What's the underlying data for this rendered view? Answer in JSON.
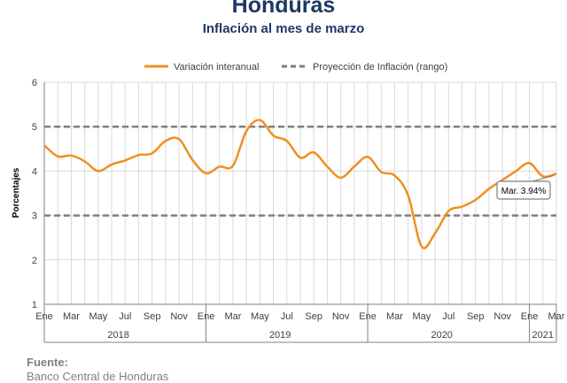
{
  "title": "Honduras",
  "subtitle": "Inflación al mes de marzo",
  "source_label": "Fuente:",
  "source_text": "Banco Central de Honduras",
  "chart_data": {
    "type": "line",
    "ylabel": "Porcentajes",
    "ylim": [
      1,
      6
    ],
    "yticks": [
      1,
      2,
      3,
      4,
      5,
      6
    ],
    "grid": true,
    "legend_position": "top",
    "x_tick_labels": [
      "Ene",
      "Mar",
      "May",
      "Jul",
      "Sep",
      "Nov",
      "Ene",
      "Mar",
      "May",
      "Jul",
      "Sep",
      "Nov",
      "Ene",
      "Mar",
      "May",
      "Jul",
      "Sep",
      "Nov",
      "Ene",
      "Mar"
    ],
    "years": [
      {
        "label": "2018",
        "start": 0,
        "end": 11
      },
      {
        "label": "2019",
        "start": 12,
        "end": 23
      },
      {
        "label": "2020",
        "start": 24,
        "end": 35
      },
      {
        "label": "2021",
        "start": 36,
        "end": 38
      }
    ],
    "x": [
      "2018-01",
      "2018-02",
      "2018-03",
      "2018-04",
      "2018-05",
      "2018-06",
      "2018-07",
      "2018-08",
      "2018-09",
      "2018-10",
      "2018-11",
      "2018-12",
      "2019-01",
      "2019-02",
      "2019-03",
      "2019-04",
      "2019-05",
      "2019-06",
      "2019-07",
      "2019-08",
      "2019-09",
      "2019-10",
      "2019-11",
      "2019-12",
      "2020-01",
      "2020-02",
      "2020-03",
      "2020-04",
      "2020-05",
      "2020-06",
      "2020-07",
      "2020-08",
      "2020-09",
      "2020-10",
      "2020-11",
      "2020-12",
      "2021-01",
      "2021-02",
      "2021-03"
    ],
    "series": [
      {
        "name": "Variación interanual",
        "color": "#f0901e",
        "style": "solid",
        "values": [
          4.58,
          4.33,
          4.35,
          4.22,
          4.0,
          4.15,
          4.24,
          4.36,
          4.4,
          4.68,
          4.72,
          4.25,
          3.95,
          4.1,
          4.12,
          4.9,
          5.15,
          4.8,
          4.68,
          4.3,
          4.42,
          4.1,
          3.85,
          4.1,
          4.32,
          3.98,
          3.9,
          3.45,
          2.3,
          2.6,
          3.1,
          3.2,
          3.35,
          3.6,
          3.8,
          4.0,
          4.18,
          3.88,
          3.94
        ]
      },
      {
        "name": "Proyección de Inflación (rango)",
        "color": "#7f7f7f",
        "style": "dashed",
        "bounds": [
          3,
          5
        ]
      }
    ],
    "annotation": {
      "text": "Mar. 3.94%",
      "index": 38
    }
  }
}
